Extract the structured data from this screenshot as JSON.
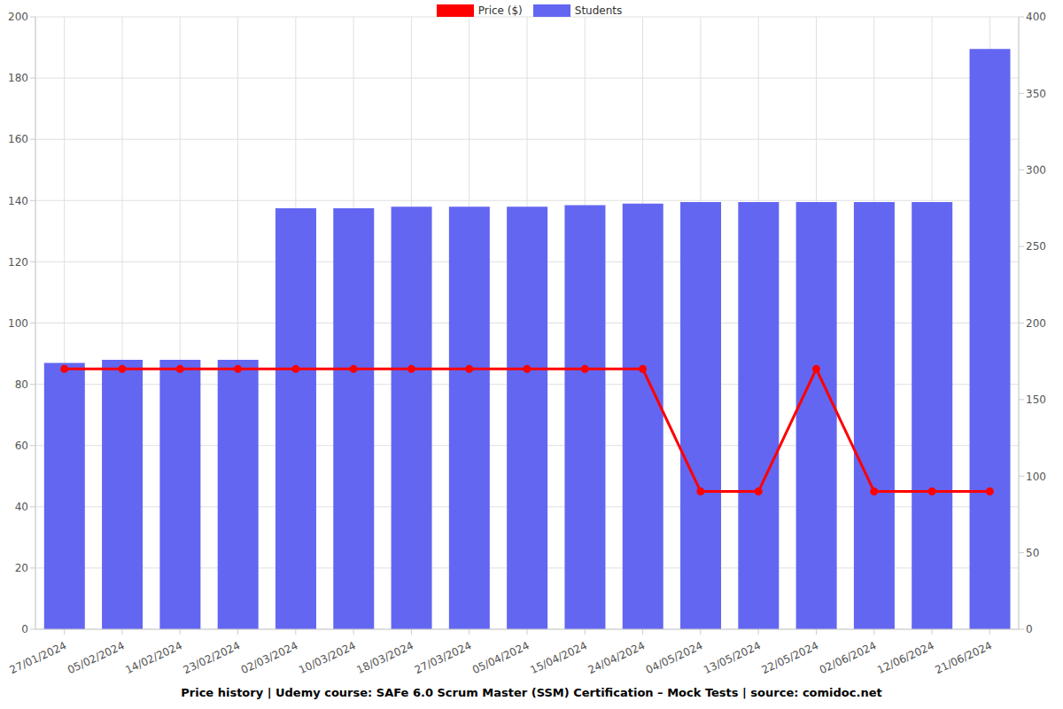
{
  "chart_data": {
    "type": "combo",
    "title": "Price history | Udemy course: SAFe 6.0 Scrum Master (SSM) Certification – Mock Tests | source: comidoc.net",
    "categories": [
      "27/01/2024",
      "05/02/2024",
      "14/02/2024",
      "23/02/2024",
      "02/03/2024",
      "10/03/2024",
      "18/03/2024",
      "27/03/2024",
      "05/04/2024",
      "15/04/2024",
      "24/04/2024",
      "04/05/2024",
      "13/05/2024",
      "22/05/2024",
      "02/06/2024",
      "12/06/2024",
      "21/06/2024"
    ],
    "series": [
      {
        "name": "Price ($)",
        "type": "line",
        "color": "#ff0000",
        "marker": "circle",
        "axis": "y",
        "values": [
          85,
          85,
          85,
          85,
          85,
          85,
          85,
          85,
          85,
          85,
          85,
          45,
          45,
          85,
          45,
          45,
          45
        ]
      },
      {
        "name": "Students",
        "type": "bar",
        "color": "#6366f1",
        "axis": "y2",
        "values": [
          174,
          176,
          176,
          176,
          275,
          275,
          276,
          276,
          276,
          277,
          278,
          279,
          279,
          279,
          279,
          279,
          379
        ]
      }
    ],
    "ylim": [
      0,
      200
    ],
    "yticks": [
      0,
      20,
      40,
      60,
      80,
      100,
      120,
      140,
      160,
      180,
      200
    ],
    "y2lim": [
      0,
      400
    ],
    "y2ticks": [
      0,
      50,
      100,
      150,
      200,
      250,
      300,
      350,
      400
    ],
    "grid": true,
    "legend": "top"
  }
}
